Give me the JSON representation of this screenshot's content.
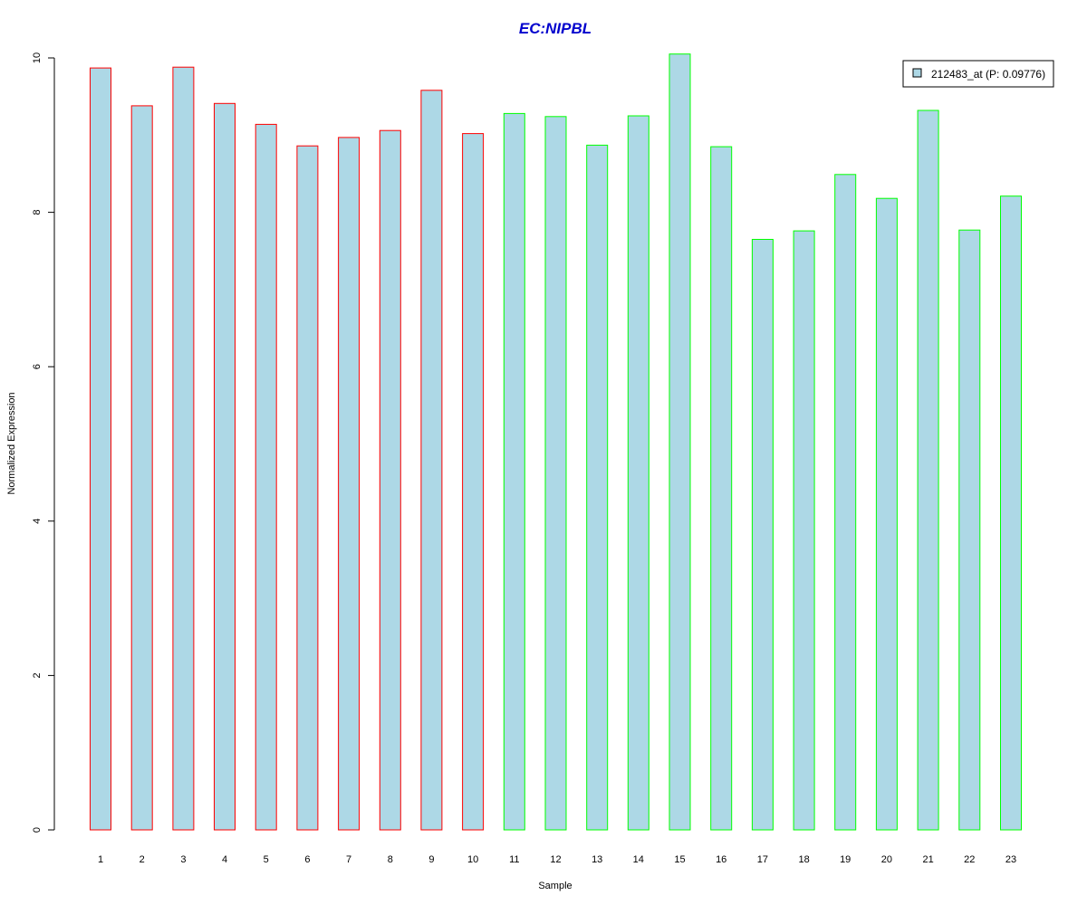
{
  "chart_data": {
    "type": "bar",
    "title": "EC:NIPBL",
    "xlabel": "Sample",
    "ylabel": "Normalized Expression",
    "ylim": [
      0,
      10
    ],
    "yticks": [
      "0",
      "2",
      "4",
      "6",
      "8",
      "10"
    ],
    "categories": [
      "1",
      "2",
      "3",
      "4",
      "5",
      "6",
      "7",
      "8",
      "9",
      "10",
      "11",
      "12",
      "13",
      "14",
      "15",
      "16",
      "17",
      "18",
      "19",
      "20",
      "21",
      "22",
      "23"
    ],
    "series": [
      {
        "name": "212483_at (P: 0.09776)",
        "values": [
          9.87,
          9.38,
          9.88,
          9.41,
          9.14,
          8.86,
          8.97,
          9.06,
          9.58,
          9.02,
          9.28,
          9.24,
          8.87,
          9.25,
          10.05,
          8.85,
          7.65,
          7.76,
          8.49,
          8.18,
          9.32,
          7.77,
          8.21
        ]
      }
    ],
    "group_colors": [
      "#ff0000",
      "#ff0000",
      "#ff0000",
      "#ff0000",
      "#ff0000",
      "#ff0000",
      "#ff0000",
      "#ff0000",
      "#ff0000",
      "#ff0000",
      "#00ff00",
      "#00ff00",
      "#00ff00",
      "#00ff00",
      "#00ff00",
      "#00ff00",
      "#00ff00",
      "#00ff00",
      "#00ff00",
      "#00ff00",
      "#00ff00",
      "#00ff00",
      "#00ff00"
    ],
    "bar_fill": "#add8e6",
    "title_color": "#0000cd",
    "legend_position": "top-right",
    "grid": false
  }
}
